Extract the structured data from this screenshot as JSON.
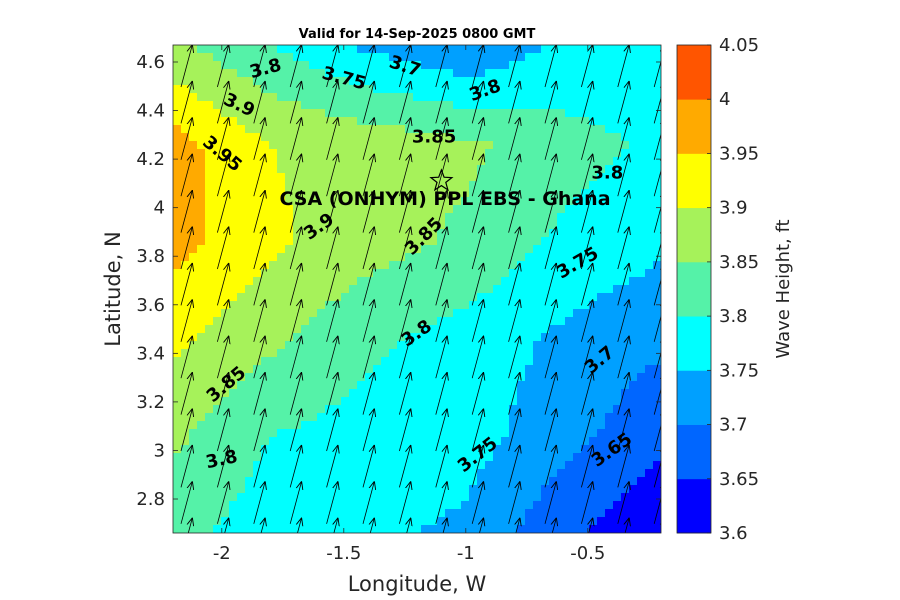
{
  "chart_data": {
    "type": "heatmap",
    "title": "Valid for 14-Sep-2025 0800 GMT",
    "xlabel": "Longitude, W",
    "ylabel": "Latitude, N",
    "colorbar_label": "Wave Height, ft",
    "xlim": [
      -2.2,
      -0.2
    ],
    "ylim": [
      2.66,
      4.67
    ],
    "xticks": [
      -2,
      -1.5,
      -1,
      -0.5
    ],
    "xtick_labels": [
      "-2",
      "-1.5",
      "-1",
      "-0.5"
    ],
    "yticks": [
      2.8,
      3.0,
      3.2,
      3.4,
      3.6,
      3.8,
      4.0,
      4.2,
      4.4,
      4.6
    ],
    "ytick_labels": [
      "2.8",
      "3",
      "3.2",
      "3.4",
      "3.6",
      "3.8",
      "4",
      "4.2",
      "4.4",
      "4.6"
    ],
    "colorbar": {
      "range": [
        3.6,
        4.05
      ],
      "levels": [
        3.6,
        3.65,
        3.7,
        3.75,
        3.8,
        3.85,
        3.9,
        3.95,
        4.0,
        4.05
      ],
      "tick_labels": [
        "3.6",
        "3.65",
        "3.7",
        "3.75",
        "3.8",
        "3.85",
        "3.9",
        "3.95",
        "4",
        "4.05"
      ],
      "colors": [
        "#0000ff",
        "#0066ff",
        "#00a0ff",
        "#00ffff",
        "#55f2a8",
        "#a6f25a",
        "#ffff00",
        "#ffaa00",
        "#ff5500"
      ]
    },
    "grid_x": [
      -2.2,
      -1.8,
      -1.4,
      -1.0,
      -0.6,
      -0.2
    ],
    "grid_y": [
      2.66,
      3.06,
      3.46,
      3.86,
      4.26,
      4.67
    ],
    "wave_height_grid": [
      [
        3.82,
        3.77,
        3.76,
        3.74,
        3.66,
        3.61
      ],
      [
        3.86,
        3.8,
        3.78,
        3.77,
        3.72,
        3.66
      ],
      [
        3.91,
        3.86,
        3.81,
        3.78,
        3.74,
        3.71
      ],
      [
        3.97,
        3.91,
        3.87,
        3.84,
        3.79,
        3.76
      ],
      [
        3.97,
        3.9,
        3.88,
        3.86,
        3.82,
        3.79
      ],
      [
        3.86,
        3.8,
        3.74,
        3.7,
        3.76,
        3.77
      ]
    ],
    "contour_labels": [
      {
        "text": "3.8",
        "x": -1.82,
        "y": 4.57,
        "rot": -15
      },
      {
        "text": "3.75",
        "x": -1.5,
        "y": 4.53,
        "rot": 15
      },
      {
        "text": "3.7",
        "x": -1.25,
        "y": 4.58,
        "rot": 18
      },
      {
        "text": "3.8",
        "x": -0.92,
        "y": 4.48,
        "rot": -20
      },
      {
        "text": "3.9",
        "x": -1.93,
        "y": 4.42,
        "rot": 25
      },
      {
        "text": "3.85",
        "x": -1.13,
        "y": 4.29,
        "rot": 0
      },
      {
        "text": "3.95",
        "x": -2.0,
        "y": 4.22,
        "rot": 40
      },
      {
        "text": "3.8",
        "x": -0.42,
        "y": 4.14,
        "rot": 0
      },
      {
        "text": "3.9",
        "x": -1.6,
        "y": 3.92,
        "rot": -35
      },
      {
        "text": "3.85",
        "x": -1.17,
        "y": 3.88,
        "rot": -45
      },
      {
        "text": "3.75",
        "x": -0.54,
        "y": 3.77,
        "rot": -30
      },
      {
        "text": "3.8",
        "x": -1.2,
        "y": 3.48,
        "rot": -35
      },
      {
        "text": "3.85",
        "x": -1.98,
        "y": 3.27,
        "rot": -40
      },
      {
        "text": "3.7",
        "x": -0.45,
        "y": 3.37,
        "rot": -40
      },
      {
        "text": "3.8",
        "x": -2.0,
        "y": 2.96,
        "rot": -12
      },
      {
        "text": "3.75",
        "x": -0.95,
        "y": 2.98,
        "rot": -38
      },
      {
        "text": "3.65",
        "x": -0.4,
        "y": 3.0,
        "rot": -35
      }
    ],
    "site": {
      "label": "CSA (ONHYM) PPL EBS  - Ghana",
      "x": -1.1,
      "y": 4.11
    },
    "wind_vector_direction_deg": 15,
    "grid_on": false
  }
}
